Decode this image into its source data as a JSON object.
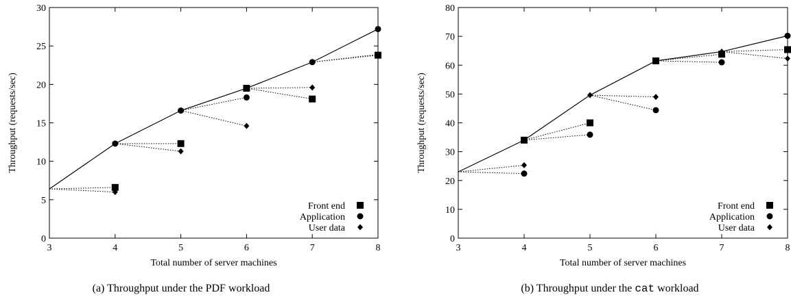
{
  "chart_data": [
    {
      "type": "line",
      "title": "",
      "caption_prefix": "(a)  Throughput under the PDF workload",
      "caption_mono": "",
      "caption_suffix": "",
      "xlabel": "Total number of server machines",
      "ylabel": "Throughput (requests/sec)",
      "xlim": [
        3,
        8
      ],
      "ylim": [
        0,
        30
      ],
      "xticks": [
        3,
        4,
        5,
        6,
        7,
        8
      ],
      "yticks": [
        0,
        5,
        10,
        15,
        20,
        25,
        30
      ],
      "grid": false,
      "legend_position": "bottom-right",
      "legend": [
        {
          "label": "Front end",
          "marker": "square"
        },
        {
          "label": "Application",
          "marker": "circle"
        },
        {
          "label": "User data",
          "marker": "diamond"
        }
      ],
      "main_line": {
        "x": [
          3,
          4,
          5,
          6,
          7,
          8
        ],
        "y": [
          6.4,
          12.3,
          16.6,
          19.5,
          22.9,
          27.2
        ]
      },
      "series": [
        {
          "name": "Front end",
          "marker": "square",
          "points": [
            [
              4,
              6.6
            ],
            [
              5,
              12.3
            ],
            [
              6,
              19.5
            ],
            [
              7,
              18.1
            ],
            [
              8,
              23.8
            ]
          ]
        },
        {
          "name": "Application",
          "marker": "circle",
          "points": [
            [
              4,
              12.3
            ],
            [
              5,
              16.6
            ],
            [
              6,
              18.3
            ],
            [
              7,
              22.9
            ],
            [
              8,
              27.2
            ]
          ]
        },
        {
          "name": "User data",
          "marker": "diamond",
          "points": [
            [
              4,
              6.0
            ],
            [
              5,
              11.3
            ],
            [
              6,
              14.6
            ],
            [
              7,
              19.6
            ],
            [
              8,
              23.9
            ]
          ]
        }
      ],
      "dotted_links": [
        [
          [
            3,
            6.4
          ],
          [
            4,
            6.6
          ]
        ],
        [
          [
            3,
            6.4
          ],
          [
            4,
            6.0
          ]
        ],
        [
          [
            4,
            12.3
          ],
          [
            5,
            12.3
          ]
        ],
        [
          [
            4,
            12.3
          ],
          [
            5,
            11.3
          ]
        ],
        [
          [
            5,
            16.6
          ],
          [
            6,
            18.3
          ]
        ],
        [
          [
            5,
            16.6
          ],
          [
            6,
            14.6
          ]
        ],
        [
          [
            6,
            19.5
          ],
          [
            7,
            18.1
          ]
        ],
        [
          [
            6,
            19.5
          ],
          [
            7,
            19.6
          ]
        ],
        [
          [
            7,
            22.9
          ],
          [
            8,
            23.8
          ]
        ],
        [
          [
            7,
            22.9
          ],
          [
            8,
            23.9
          ]
        ]
      ]
    },
    {
      "type": "line",
      "title": "",
      "caption_prefix": "(b)  Throughput under the ",
      "caption_mono": "cat",
      "caption_suffix": " workload",
      "xlabel": "Total number of server machines",
      "ylabel": "Throughput (requests/sec)",
      "xlim": [
        3,
        8
      ],
      "ylim": [
        0,
        80
      ],
      "xticks": [
        3,
        4,
        5,
        6,
        7,
        8
      ],
      "yticks": [
        0,
        10,
        20,
        30,
        40,
        50,
        60,
        70,
        80
      ],
      "grid": false,
      "legend_position": "bottom-right",
      "legend": [
        {
          "label": "Front end",
          "marker": "square"
        },
        {
          "label": "Application",
          "marker": "circle"
        },
        {
          "label": "User data",
          "marker": "diamond"
        }
      ],
      "main_line": {
        "x": [
          3,
          4,
          5,
          6,
          7,
          8
        ],
        "y": [
          23,
          34,
          49.6,
          61.5,
          64.7,
          70.2
        ]
      },
      "series": [
        {
          "name": "Front end",
          "marker": "square",
          "points": [
            [
              4,
              34
            ],
            [
              5,
              40
            ],
            [
              6,
              61.5
            ],
            [
              7,
              63.8
            ],
            [
              8,
              65.4
            ]
          ]
        },
        {
          "name": "Application",
          "marker": "circle",
          "points": [
            [
              4,
              22.4
            ],
            [
              5,
              35.9
            ],
            [
              6,
              44.4
            ],
            [
              7,
              61.0
            ],
            [
              8,
              70.2
            ]
          ]
        },
        {
          "name": "User data",
          "marker": "diamond",
          "points": [
            [
              4,
              25.3
            ],
            [
              5,
              49.6
            ],
            [
              6,
              49.0
            ],
            [
              7,
              64.7
            ],
            [
              8,
              62.3
            ]
          ]
        }
      ],
      "dotted_links": [
        [
          [
            3,
            23
          ],
          [
            4,
            22.4
          ]
        ],
        [
          [
            3,
            23
          ],
          [
            4,
            25.3
          ]
        ],
        [
          [
            4,
            34
          ],
          [
            5,
            40
          ]
        ],
        [
          [
            4,
            34
          ],
          [
            5,
            35.9
          ]
        ],
        [
          [
            5,
            49.6
          ],
          [
            6,
            49.0
          ]
        ],
        [
          [
            5,
            49.6
          ],
          [
            6,
            44.4
          ]
        ],
        [
          [
            6,
            61.5
          ],
          [
            7,
            63.8
          ]
        ],
        [
          [
            6,
            61.5
          ],
          [
            7,
            61.0
          ]
        ],
        [
          [
            7,
            64.7
          ],
          [
            8,
            65.4
          ]
        ],
        [
          [
            7,
            64.7
          ],
          [
            8,
            62.3
          ]
        ]
      ]
    }
  ]
}
